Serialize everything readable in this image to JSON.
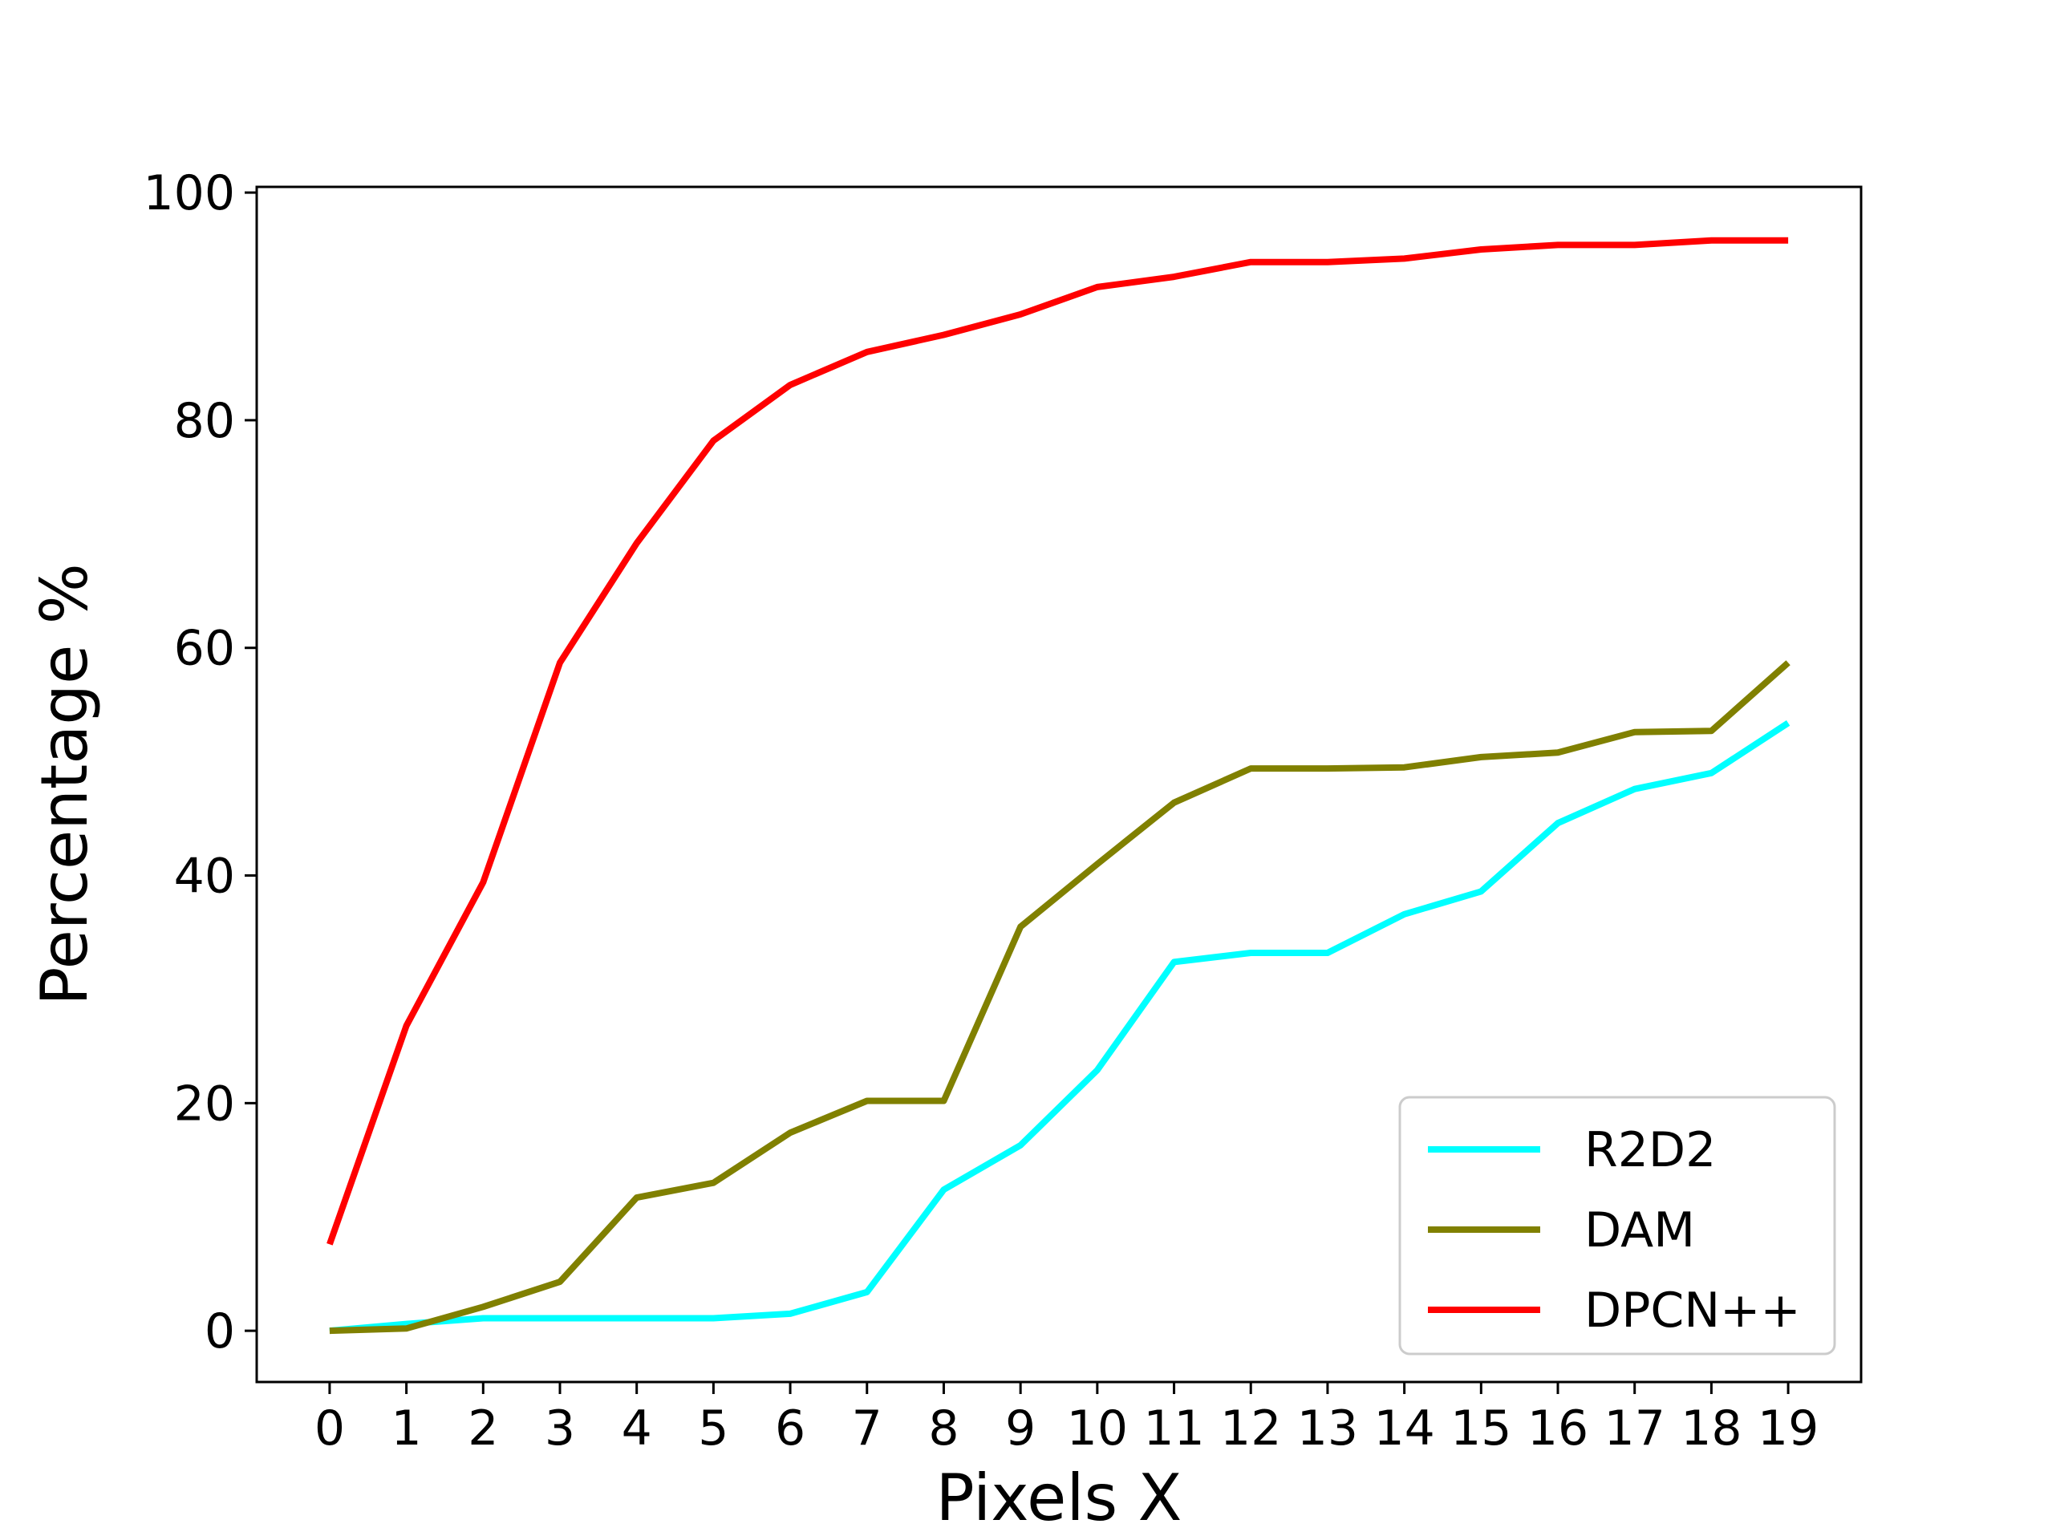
{
  "chart_data": {
    "type": "line",
    "title": "",
    "xlabel": "Pixels X",
    "ylabel": "Percentage %",
    "x": [
      0,
      1,
      2,
      3,
      4,
      5,
      6,
      7,
      8,
      9,
      10,
      11,
      12,
      13,
      14,
      15,
      16,
      17,
      18,
      19
    ],
    "xlim": [
      -0.95,
      19.95
    ],
    "ylim": [
      -4.5,
      100.5
    ],
    "yticks": [
      0,
      20,
      40,
      60,
      80,
      100
    ],
    "grid": false,
    "legend_position": "lower right",
    "series": [
      {
        "name": "R2D2",
        "color": "#00ffff",
        "values": [
          0.0,
          0.6,
          1.1,
          1.1,
          1.1,
          1.1,
          1.5,
          3.4,
          12.4,
          16.3,
          22.9,
          32.4,
          33.2,
          33.2,
          36.6,
          38.6,
          44.6,
          47.6,
          49.0,
          53.4
        ]
      },
      {
        "name": "DAM",
        "color": "#808000",
        "values": [
          0.0,
          0.2,
          2.1,
          4.3,
          11.7,
          13.0,
          17.4,
          20.2,
          20.2,
          35.5,
          41.0,
          46.4,
          49.4,
          49.4,
          49.5,
          50.4,
          50.8,
          52.6,
          52.7,
          58.7
        ]
      },
      {
        "name": "DPCN++",
        "color": "#ff0000",
        "values": [
          7.6,
          26.8,
          39.4,
          58.7,
          69.2,
          78.2,
          83.1,
          86.0,
          87.5,
          89.3,
          91.7,
          92.6,
          93.9,
          93.9,
          94.2,
          95.0,
          95.4,
          95.4,
          95.8,
          95.8
        ]
      }
    ]
  }
}
